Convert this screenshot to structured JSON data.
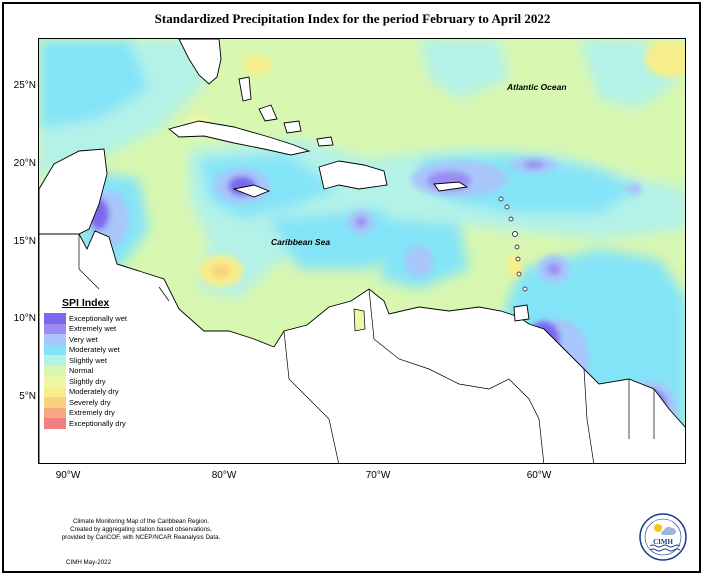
{
  "title": "Standardized Precipitation Index for the period February to April 2022",
  "axes": {
    "lat_labels": [
      "25°N",
      "20°N",
      "15°N",
      "10°N",
      "5°N"
    ],
    "lon_labels": [
      "90°W",
      "80°W",
      "70°W",
      "60°W"
    ]
  },
  "map_labels": {
    "atlantic": "Atlantic Ocean",
    "caribbean": "Caribbean Sea"
  },
  "legend": {
    "title": "SPI Index",
    "items": [
      {
        "label": "Exceptionally wet",
        "color": "#7b68ee"
      },
      {
        "label": "Extremely wet",
        "color": "#9a8cf2"
      },
      {
        "label": "Very wet",
        "color": "#a8c6fa"
      },
      {
        "label": "Moderately wet",
        "color": "#84e4f7"
      },
      {
        "label": "Slightly wet",
        "color": "#b4f2e8"
      },
      {
        "label": "Normal",
        "color": "#d8f7b0"
      },
      {
        "label": "Slightly dry",
        "color": "#eef7a6"
      },
      {
        "label": "Moderately dry",
        "color": "#f6ee8a"
      },
      {
        "label": "Severely dry",
        "color": "#f9d27d"
      },
      {
        "label": "Extremely dry",
        "color": "#f7a882"
      },
      {
        "label": "Exceptionally dry",
        "color": "#f07f7f"
      }
    ]
  },
  "footnote": {
    "line1": "Climate Monitoring Map of the Caribbean Region.",
    "line2": "Created by aggregating station based observations,",
    "line3": "provided by CariCOF, with NCEP/NCAR Reanalysis Data.",
    "date": "CIMH May-2022"
  },
  "logo": {
    "text": "CIMH"
  }
}
